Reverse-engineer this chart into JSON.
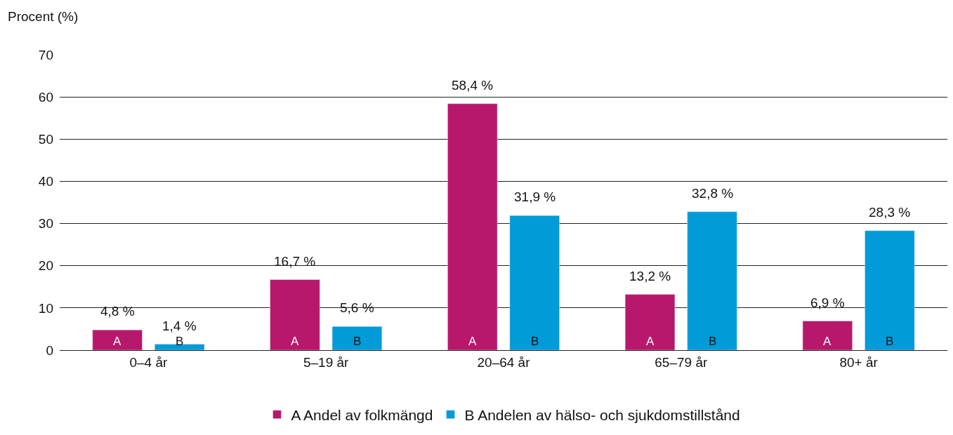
{
  "chart_data": {
    "type": "bar",
    "ylabel": "Procent (%)",
    "categories": [
      "0–4 år",
      "5–19 år",
      "20–64 år",
      "65–79 år",
      "80+ år"
    ],
    "series": [
      {
        "name": "A Andel av folkmängd",
        "color": "#b8186b",
        "values": [
          4.8,
          16.7,
          58.4,
          13.2,
          6.9
        ],
        "value_labels": [
          "4,8 %",
          "16,7 %",
          "58,4 %",
          "13,2 %",
          "6,9 %"
        ]
      },
      {
        "name": "B Andelen av hälso- och sjukdomstillstånd",
        "color": "#009bd8",
        "values": [
          1.4,
          5.6,
          31.9,
          32.8,
          28.3
        ],
        "value_labels": [
          "1,4 %",
          "5,6 %",
          "31,9 %",
          "32,8 %",
          "28,3 %"
        ]
      }
    ],
    "annotations": [
      "A",
      "B",
      "A",
      "B",
      "A",
      "B",
      "A",
      "B",
      "A",
      "B"
    ],
    "ylim": [
      0,
      70
    ],
    "yticks": [
      0,
      10,
      20,
      30,
      40,
      50,
      60,
      70
    ],
    "grid": "y",
    "legend": "bottom"
  }
}
